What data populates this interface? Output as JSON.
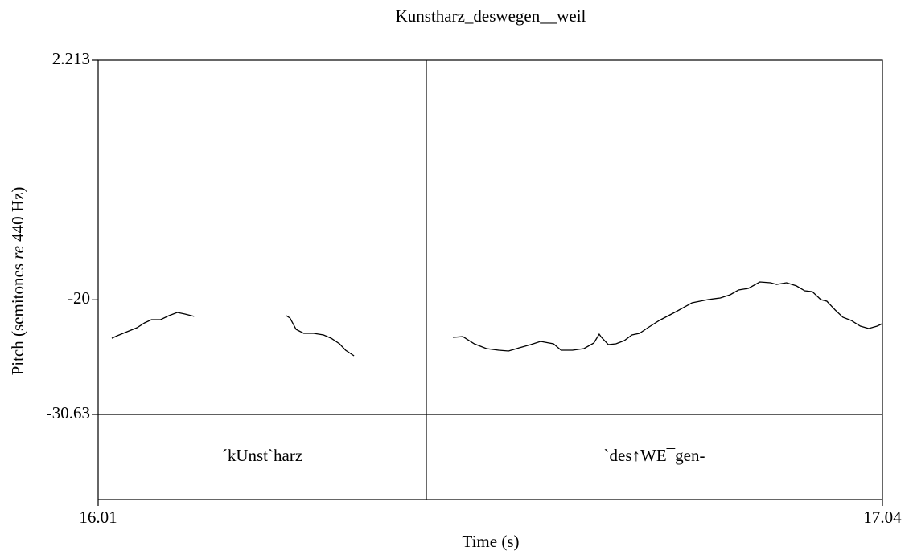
{
  "chart_data": {
    "type": "line",
    "title": "Kunstharz_deswegen__weil",
    "xlabel": "Time (s)",
    "ylabel": [
      "Pitch (semitones ",
      "re",
      " 440 Hz)"
    ],
    "xlim": [
      16.01,
      17.04
    ],
    "xticks": [
      16.01,
      17.04
    ],
    "ylim": [
      -30.63,
      2.213
    ],
    "yticks": [
      2.213,
      -20,
      -30.63
    ],
    "color": "#000000",
    "x": [
      16.028,
      16.035,
      16.048,
      16.061,
      16.071,
      16.08,
      16.092,
      16.103,
      16.114,
      16.124,
      16.136,
      null,
      16.257,
      16.262,
      16.27,
      16.28,
      16.293,
      16.306,
      16.316,
      16.327,
      16.335,
      16.346,
      null,
      16.476,
      16.489,
      16.504,
      16.52,
      16.536,
      16.549,
      16.563,
      16.578,
      16.591,
      16.608,
      16.618,
      16.633,
      16.648,
      16.661,
      16.668,
      16.671,
      16.68,
      16.69,
      16.701,
      16.711,
      16.721,
      16.732,
      16.747,
      16.769,
      16.79,
      16.811,
      16.827,
      16.84,
      16.851,
      16.864,
      16.879,
      16.893,
      16.901,
      16.914,
      16.927,
      16.938,
      16.948,
      16.959,
      16.967,
      16.978,
      16.988,
      16.999,
      17.011,
      17.022,
      17.033,
      17.04
    ],
    "values": [
      -23.56,
      -23.33,
      -22.96,
      -22.59,
      -22.14,
      -21.84,
      -21.84,
      -21.47,
      -21.17,
      -21.32,
      -21.54,
      null,
      -21.47,
      -21.69,
      -22.74,
      -23.11,
      -23.11,
      -23.26,
      -23.56,
      -24.08,
      -24.67,
      -25.19,
      null,
      -23.48,
      -23.41,
      -24.08,
      -24.52,
      -24.67,
      -24.75,
      -24.45,
      -24.15,
      -23.85,
      -24.08,
      -24.67,
      -24.67,
      -24.52,
      -24.0,
      -23.18,
      -23.48,
      -24.15,
      -24.08,
      -23.78,
      -23.26,
      -23.11,
      -22.59,
      -21.92,
      -21.1,
      -20.28,
      -19.98,
      -19.83,
      -19.53,
      -19.09,
      -18.94,
      -18.34,
      -18.42,
      -18.57,
      -18.42,
      -18.71,
      -19.16,
      -19.24,
      -19.98,
      -20.13,
      -20.95,
      -21.62,
      -21.92,
      -22.44,
      -22.66,
      -22.44,
      -22.21
    ],
    "boundaries": [
      16.441
    ],
    "intervals": [
      "´kUnst`harz",
      "`des↑WE¯gen-"
    ]
  }
}
